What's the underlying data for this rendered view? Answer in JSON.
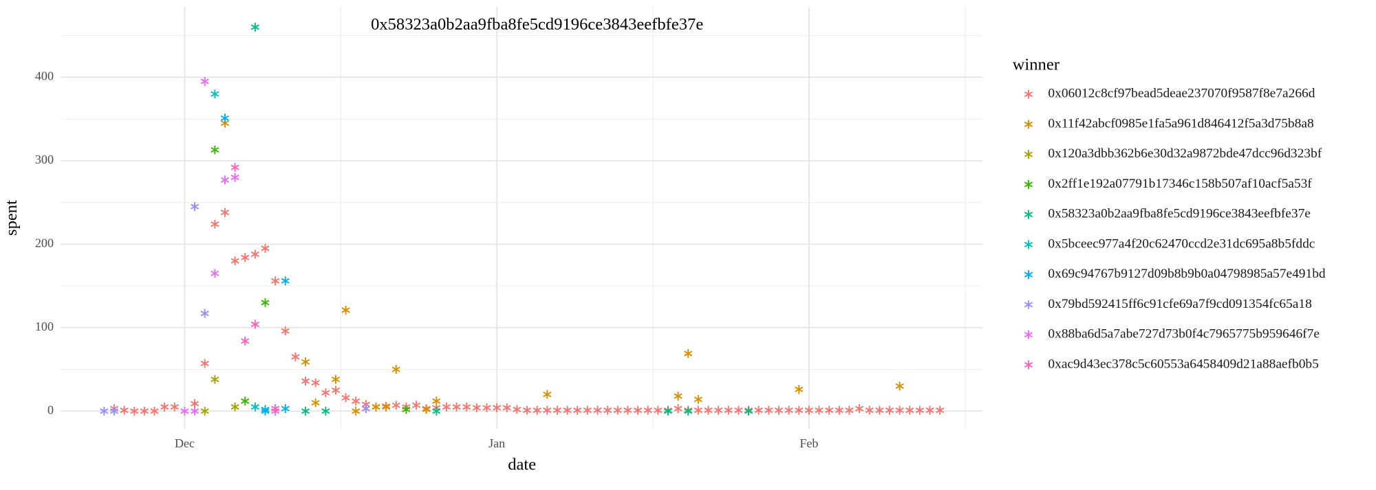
{
  "chart_data": {
    "type": "scatter",
    "annotation": "0x58323a0b2aa9fba8fe5cd9196ce3843eefbfe37e",
    "x_label": "date",
    "y_label": "spent",
    "legend_title": "winner",
    "legend_position": "right",
    "grid": true,
    "xlim": [
      -12.3,
      79.2
    ],
    "xticks": [
      {
        "value": 0,
        "label": "Dec"
      },
      {
        "value": 31,
        "label": "Jan"
      },
      {
        "value": 62,
        "label": "Feb"
      }
    ],
    "xticks_minor": [
      15.5,
      46.5,
      77.5
    ],
    "ylim": [
      -21,
      484
    ],
    "yticks": [
      0,
      100,
      200,
      300,
      400
    ],
    "yticks_minor": [
      50,
      150,
      250,
      350,
      450
    ],
    "series": [
      {
        "name": "0x06012c8cf97bead5deae237070f9587f8e7a266d",
        "color": "#F8766D",
        "x": [
          -7,
          -6,
          -5,
          -4,
          -3,
          -2,
          -1,
          1,
          2,
          3,
          4,
          5,
          6,
          7,
          8,
          9,
          10,
          11,
          12,
          13,
          14,
          15,
          16,
          17,
          18,
          19,
          20,
          21,
          22,
          23,
          24,
          25,
          26,
          27,
          28,
          29,
          30,
          31,
          32,
          33,
          34,
          35,
          36,
          37,
          38,
          39,
          40,
          41,
          42,
          43,
          44,
          45,
          46,
          47,
          48,
          49,
          50,
          51,
          52,
          53,
          54,
          55,
          56,
          57,
          58,
          59,
          60,
          61,
          62,
          63,
          64,
          65,
          66,
          67,
          68,
          69,
          70,
          71,
          72,
          73,
          74,
          75
        ],
        "values": [
          3,
          1,
          0,
          0,
          0,
          5,
          5,
          9,
          57,
          224,
          238,
          180,
          184,
          188,
          195,
          156,
          96,
          65,
          36,
          34,
          22,
          25,
          16,
          12,
          8,
          5,
          6,
          7,
          5,
          7,
          3,
          4,
          5,
          5,
          5,
          4,
          4,
          4,
          4,
          2,
          1,
          1,
          1,
          1,
          1,
          1,
          1,
          1,
          1,
          1,
          1,
          1,
          1,
          1,
          1,
          3,
          1,
          1,
          1,
          1,
          1,
          1,
          1,
          1,
          1,
          1,
          1,
          1,
          1,
          1,
          1,
          1,
          1,
          3,
          1,
          1,
          1,
          1,
          1,
          1,
          1,
          1
        ]
      },
      {
        "name": "0x11f42abcf0985e1fa5a961d846412f5a3d75b8a8",
        "color": "#D89000",
        "x": [
          4,
          12,
          13,
          15,
          16,
          17,
          18,
          19,
          20,
          21,
          24,
          25,
          36,
          49,
          50,
          51,
          61,
          71
        ],
        "values": [
          345,
          59,
          10,
          38,
          121,
          0,
          3,
          5,
          5,
          50,
          2,
          12,
          20,
          18,
          69,
          14,
          26,
          30
        ]
      },
      {
        "name": "0x120a3dbb362b6e30d32a9872bde47dcc96d323bf",
        "color": "#A3A500",
        "x": [
          2,
          3,
          5
        ],
        "values": [
          0,
          38,
          5
        ]
      },
      {
        "name": "0x2ff1e192a07791b17346c158b507af10acf5a53f",
        "color": "#39B600",
        "x": [
          3,
          6,
          8,
          22
        ],
        "values": [
          313,
          12,
          130,
          2
        ]
      },
      {
        "name": "0x58323a0b2aa9fba8fe5cd9196ce3843eefbfe37e",
        "color": "#00BF7D",
        "x": [
          7,
          12,
          14,
          25,
          48,
          50,
          56
        ],
        "values": [
          460,
          0,
          0,
          0,
          0,
          0,
          0
        ]
      },
      {
        "name": "0x5bceec977a4f20c62470ccd2e31dc695a8b5fddc",
        "color": "#00BFC4",
        "x": [
          3,
          7,
          8
        ],
        "values": [
          380,
          5,
          2
        ]
      },
      {
        "name": "0x69c94767b9127d09b8b9b0a04798985a57e491bd",
        "color": "#00B0F6",
        "x": [
          4,
          8,
          10,
          10
        ],
        "values": [
          351,
          0,
          156,
          3
        ]
      },
      {
        "name": "0x79bd592415ff6c91cfe69a7f9cd091354fc65a18",
        "color": "#9590FF",
        "x": [
          -8,
          -7,
          1,
          2,
          18
        ],
        "values": [
          0,
          0,
          245,
          117,
          3
        ]
      },
      {
        "name": "0x88ba6d5a7abe727d73b0f4c7965775b959646f7e",
        "color": "#E76BF3",
        "x": [
          0,
          1,
          2,
          3,
          4,
          5,
          9
        ],
        "values": [
          0,
          0,
          395,
          165,
          277,
          280,
          0
        ]
      },
      {
        "name": "0xac9d43ec378c5c60553a6458409d21a88aefb0b5",
        "color": "#FF62BC",
        "x": [
          5,
          6,
          7,
          9
        ],
        "values": [
          292,
          84,
          104,
          3
        ]
      }
    ]
  }
}
